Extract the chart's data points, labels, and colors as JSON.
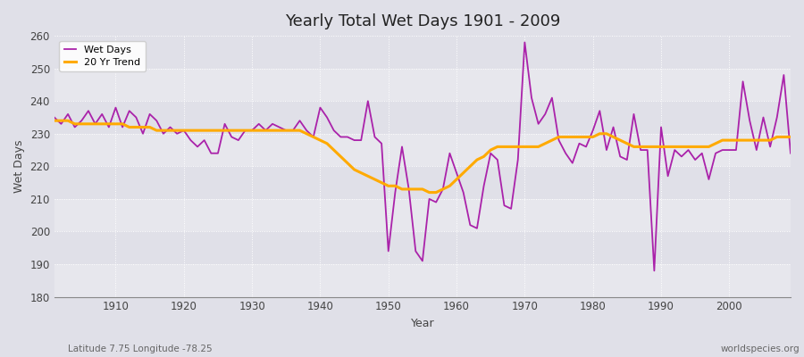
{
  "title": "Yearly Total Wet Days 1901 - 2009",
  "xlabel": "Year",
  "ylabel": "Wet Days",
  "subtitle_left": "Latitude 7.75 Longitude -78.25",
  "subtitle_right": "worldspecies.org",
  "ylim": [
    180,
    260
  ],
  "xlim": [
    1901,
    2009
  ],
  "yticks": [
    180,
    190,
    200,
    210,
    220,
    230,
    240,
    250,
    260
  ],
  "xticks": [
    1910,
    1920,
    1930,
    1940,
    1950,
    1960,
    1970,
    1980,
    1990,
    2000
  ],
  "wet_days_color": "#aa22aa",
  "trend_color": "#ffaa00",
  "bg_color": "#e0e0e8",
  "years": [
    1901,
    1902,
    1903,
    1904,
    1905,
    1906,
    1907,
    1908,
    1909,
    1910,
    1911,
    1912,
    1913,
    1914,
    1915,
    1916,
    1917,
    1918,
    1919,
    1920,
    1921,
    1922,
    1923,
    1924,
    1925,
    1926,
    1927,
    1928,
    1929,
    1930,
    1931,
    1932,
    1933,
    1934,
    1935,
    1936,
    1937,
    1938,
    1939,
    1940,
    1941,
    1942,
    1943,
    1944,
    1945,
    1946,
    1947,
    1948,
    1949,
    1950,
    1951,
    1952,
    1953,
    1954,
    1955,
    1956,
    1957,
    1958,
    1959,
    1960,
    1961,
    1962,
    1963,
    1964,
    1965,
    1966,
    1967,
    1968,
    1969,
    1970,
    1971,
    1972,
    1973,
    1974,
    1975,
    1976,
    1977,
    1978,
    1979,
    1980,
    1981,
    1982,
    1983,
    1984,
    1985,
    1986,
    1987,
    1988,
    1989,
    1990,
    1991,
    1992,
    1993,
    1994,
    1995,
    1996,
    1997,
    1998,
    1999,
    2000,
    2001,
    2002,
    2003,
    2004,
    2005,
    2006,
    2007,
    2008,
    2009
  ],
  "wet_days": [
    235,
    233,
    236,
    232,
    234,
    237,
    233,
    236,
    232,
    238,
    232,
    237,
    235,
    230,
    236,
    234,
    230,
    232,
    230,
    231,
    228,
    226,
    228,
    224,
    224,
    233,
    229,
    228,
    231,
    231,
    233,
    231,
    233,
    232,
    231,
    231,
    234,
    231,
    229,
    238,
    235,
    231,
    229,
    229,
    228,
    228,
    240,
    229,
    227,
    194,
    212,
    226,
    213,
    194,
    191,
    210,
    209,
    213,
    224,
    218,
    212,
    202,
    201,
    214,
    224,
    222,
    208,
    207,
    222,
    258,
    241,
    233,
    236,
    241,
    228,
    224,
    221,
    227,
    226,
    231,
    237,
    225,
    232,
    223,
    222,
    236,
    225,
    225,
    188,
    232,
    217,
    225,
    223,
    225,
    222,
    224,
    216,
    224,
    225,
    225,
    225,
    246,
    234,
    225,
    235,
    226,
    235,
    248,
    224
  ],
  "trend": [
    234,
    234,
    234,
    233,
    233,
    233,
    233,
    233,
    233,
    233,
    233,
    232,
    232,
    232,
    232,
    231,
    231,
    231,
    231,
    231,
    231,
    231,
    231,
    231,
    231,
    231,
    231,
    231,
    231,
    231,
    231,
    231,
    231,
    231,
    231,
    231,
    231,
    230,
    229,
    228,
    227,
    225,
    223,
    221,
    219,
    218,
    217,
    216,
    215,
    214,
    214,
    213,
    213,
    213,
    213,
    212,
    212,
    213,
    214,
    216,
    218,
    220,
    222,
    223,
    225,
    226,
    226,
    226,
    226,
    226,
    226,
    226,
    227,
    228,
    229,
    229,
    229,
    229,
    229,
    229,
    230,
    230,
    229,
    228,
    227,
    226,
    226,
    226,
    226,
    226,
    226,
    226,
    226,
    226,
    226,
    226,
    226,
    227,
    228,
    228,
    228,
    228,
    228,
    228,
    228,
    228,
    229,
    229,
    229
  ]
}
